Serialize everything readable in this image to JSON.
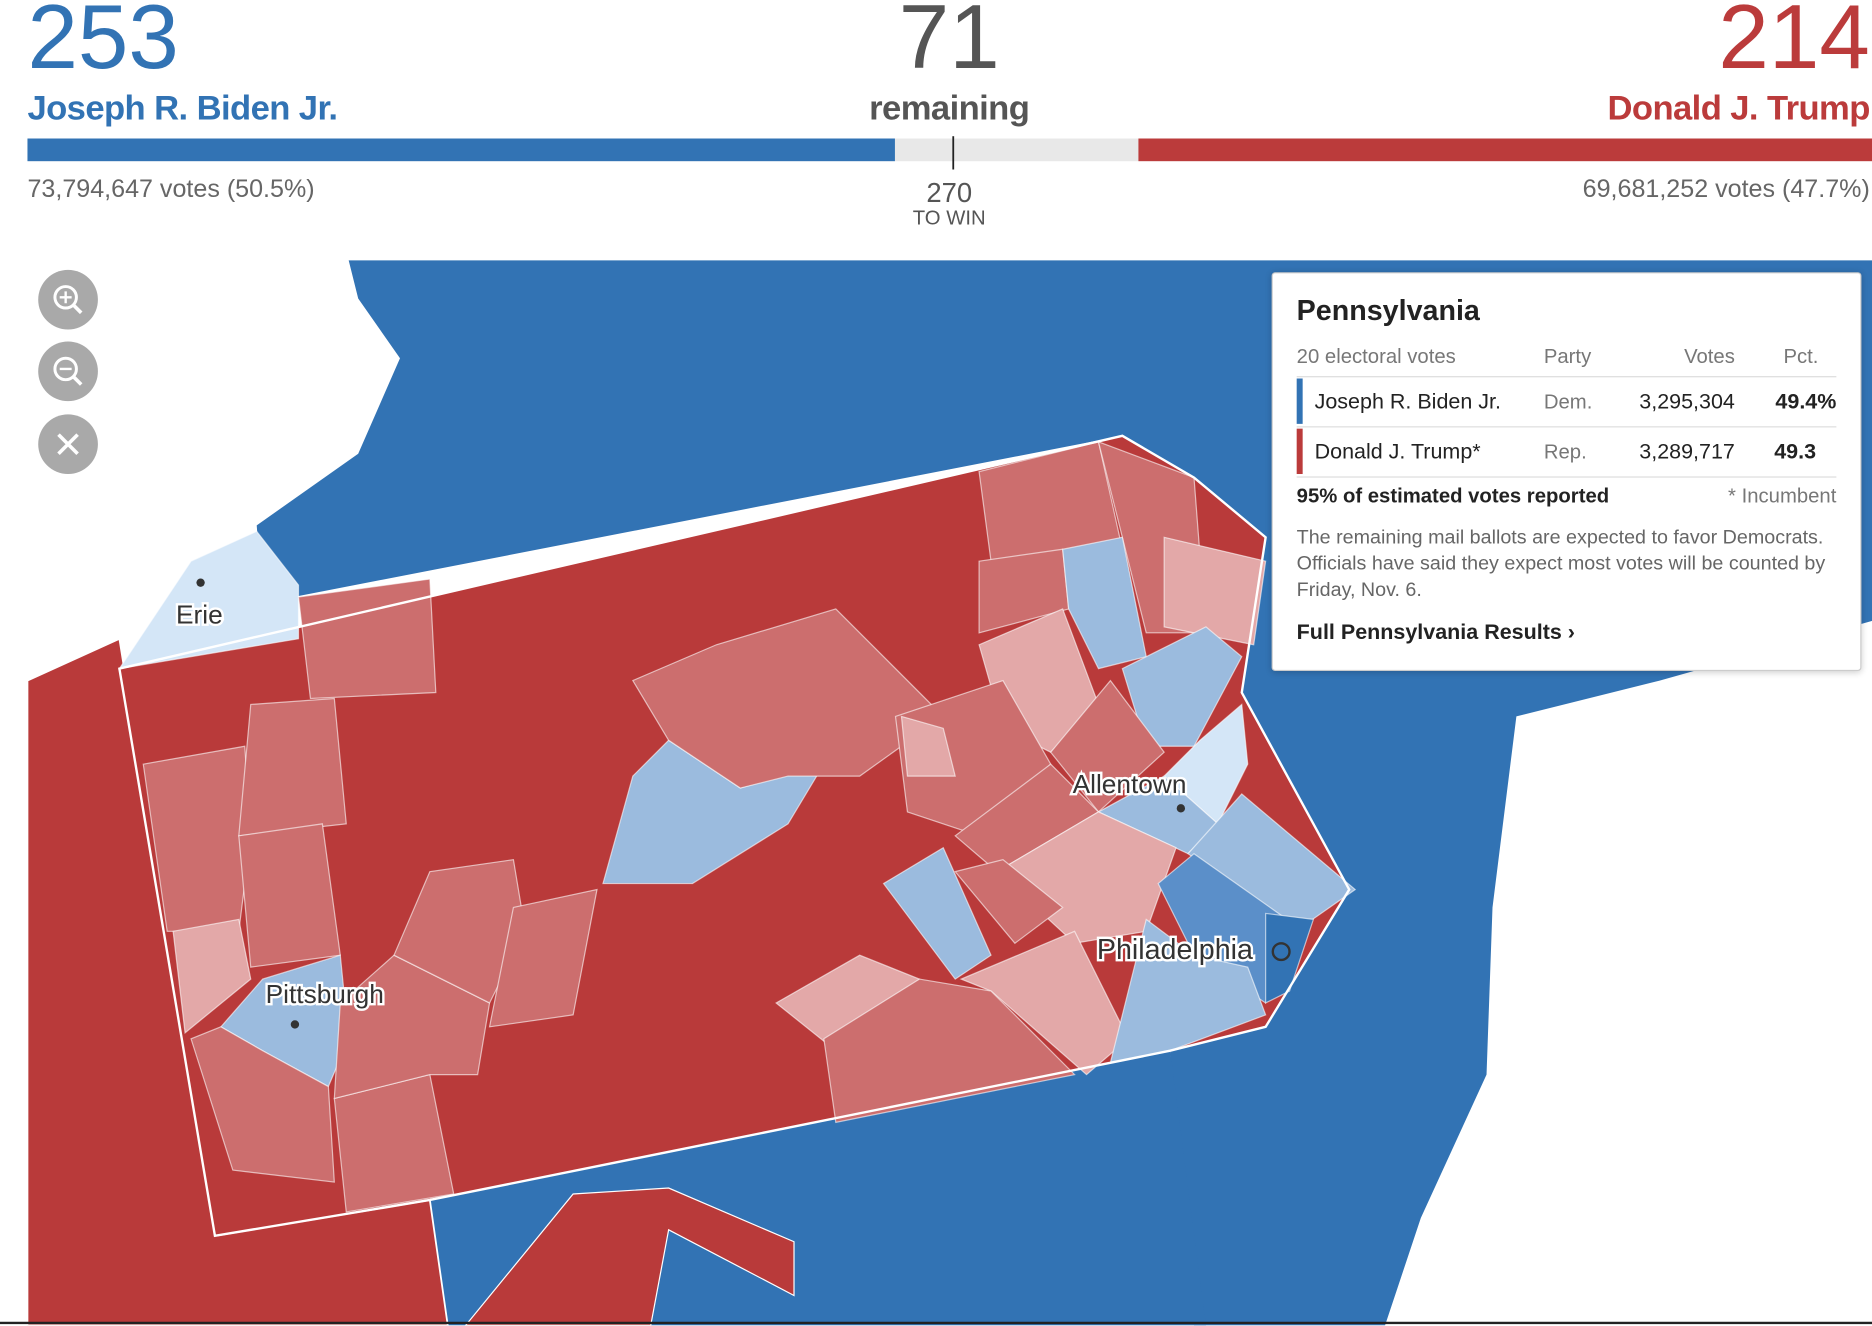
{
  "header": {
    "left": {
      "electoral_votes": 253,
      "name": "Joseph R. Biden Jr.",
      "popular": "73,794,647 votes (50.5%)"
    },
    "center": {
      "remaining": 71,
      "label": "remaining",
      "threshold": 270,
      "threshold_label": "TO WIN"
    },
    "right": {
      "electoral_votes": 214,
      "name": "Donald J. Trump",
      "popular": "69,681,252 votes (47.7%)"
    }
  },
  "map": {
    "labels": [
      "Erie",
      "Pittsburgh",
      "Allentown",
      "Philadelphia"
    ]
  },
  "popup": {
    "title": "Pennsylvania",
    "columns": [
      "20 electoral votes",
      "Party",
      "Votes",
      "Pct."
    ],
    "rows": [
      [
        "Joseph R. Biden Jr.",
        "Dem.",
        "3,295,304",
        "49.4%"
      ],
      [
        "Donald J. Trump*",
        "Rep.",
        "3,289,717",
        "49.3"
      ]
    ],
    "reported": "95% of estimated votes reported",
    "note": "* Incumbent",
    "description": "The remaining mail ballots are expected to favor Democrats. Officials have said they expect most votes will be counted by Friday, Nov. 6.",
    "link": "Full Pennsylvania Results ›"
  }
}
